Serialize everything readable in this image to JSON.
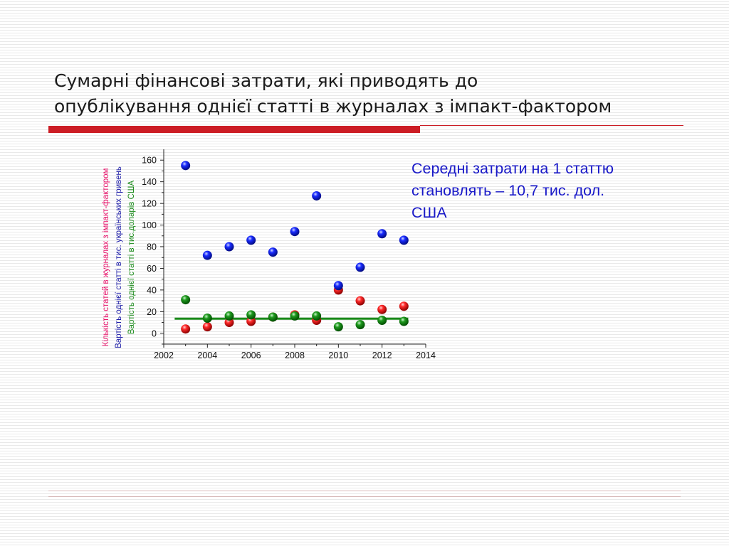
{
  "slide": {
    "title_lines": [
      "Сумарні фінансові затрати, які приводять до",
      "опублікування однієї статті в журналах з імпакт-фактором"
    ],
    "note_lines": [
      "Середні затрати на 1 статтю",
      "становлять – 10,7 тис. дол.",
      "США"
    ]
  },
  "colors": {
    "accent_bar": "#cc1d25",
    "note_text": "#1919c8",
    "series_count": "#e8156c",
    "series_uah": "#2020a8",
    "series_usd": "#1a8a1a",
    "trend_line": "#1a8a1a"
  },
  "chart_data": {
    "type": "scatter",
    "xlim": [
      2002,
      2014
    ],
    "ylim": [
      -10,
      170
    ],
    "x_ticks": [
      2002,
      2004,
      2006,
      2008,
      2010,
      2012,
      2014
    ],
    "x_tick_labels": [
      "2002",
      "2004",
      "2006",
      "2008",
      "2010",
      "2012",
      "2014"
    ],
    "y_ticks": [
      0,
      20,
      40,
      60,
      80,
      100,
      120,
      140,
      160
    ],
    "y_tick_labels": [
      "0",
      "20",
      "40",
      "60",
      "80",
      "100",
      "120",
      "140",
      "160"
    ],
    "ylabels": [
      "Кількість статей в журналах з імпакт-фактором",
      "Вартість однієї статті в тис. українських гривень",
      "Вартість однієї статті в тис.доларів США"
    ],
    "grid": false,
    "legend": "none",
    "series": [
      {
        "color": "red",
        "x": [
          2003,
          2004,
          2005,
          2006,
          2007,
          2008,
          2009,
          2010,
          2011,
          2012,
          2013
        ],
        "y": [
          4,
          6,
          10,
          11,
          15,
          17,
          12,
          40,
          30,
          22,
          25
        ]
      },
      {
        "color": "blue",
        "x": [
          2003,
          2004,
          2005,
          2006,
          2007,
          2008,
          2009,
          2010,
          2011,
          2012,
          2013
        ],
        "y": [
          155,
          72,
          80,
          86,
          75,
          94,
          127,
          44,
          61,
          92,
          86
        ]
      },
      {
        "color": "green",
        "x": [
          2003,
          2004,
          2005,
          2006,
          2007,
          2008,
          2009,
          2010,
          2011,
          2012,
          2013
        ],
        "y": [
          31,
          14,
          16,
          17,
          15,
          16,
          16,
          6,
          8,
          12,
          11
        ]
      }
    ],
    "trend_line": {
      "color": "green",
      "x": [
        2002.5,
        2013.2
      ],
      "y": [
        13.5,
        13.5
      ]
    }
  }
}
